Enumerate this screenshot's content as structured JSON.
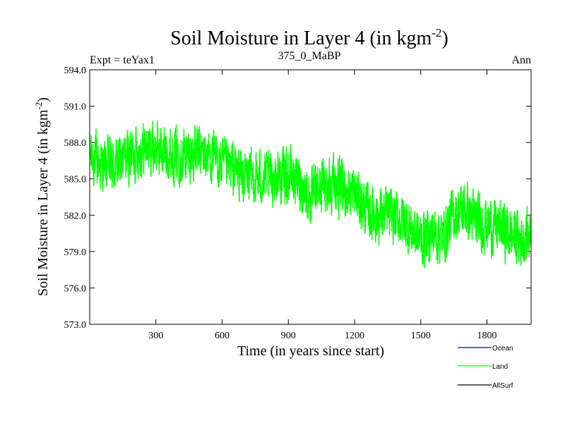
{
  "chart_data": {
    "type": "line",
    "title": "Soil Moisture in Layer 4 (in kgm",
    "title_sup": "-2",
    "title_close": ")",
    "subtitle_left": "Expt = teYax1",
    "subtitle_center": "375_0_MaBP",
    "subtitle_right": "Ann",
    "xlabel": "Time (in years since start)",
    "ylabel": "Soil Moisture in Layer 4 (in kgm",
    "ylabel_sup": "-2",
    "ylabel_close": ")",
    "xlim": [
      0,
      2000
    ],
    "ylim": [
      573.0,
      594.0
    ],
    "x_ticks": [
      300,
      600,
      900,
      1200,
      1500,
      1800
    ],
    "x_tick_labels": [
      "300",
      "600",
      "900",
      "1200",
      "1500",
      "1800"
    ],
    "y_ticks": [
      573.0,
      576.0,
      579.0,
      582.0,
      585.0,
      588.0,
      591.0,
      594.0
    ],
    "y_tick_labels": [
      "573.0",
      "576.0",
      "579.0",
      "582.0",
      "585.0",
      "588.0",
      "591.0",
      "594.0"
    ],
    "series": [
      {
        "name": "Ocean",
        "color": "#0000ff",
        "values": []
      },
      {
        "name": "Land",
        "color": "#00ff00",
        "anchors_x": [
          0,
          50,
          100,
          150,
          200,
          250,
          300,
          350,
          400,
          450,
          500,
          550,
          600,
          650,
          700,
          750,
          800,
          850,
          900,
          950,
          1000,
          1050,
          1100,
          1150,
          1200,
          1250,
          1300,
          1350,
          1400,
          1450,
          1500,
          1550,
          1600,
          1650,
          1700,
          1750,
          1800,
          1850,
          1900,
          1950,
          2000
        ],
        "anchors_y": [
          587.0,
          586.2,
          586.0,
          586.5,
          587.2,
          587.6,
          587.5,
          587.2,
          587.0,
          587.0,
          587.2,
          586.8,
          586.0,
          585.8,
          585.2,
          585.0,
          585.0,
          585.2,
          585.3,
          584.8,
          583.2,
          584.5,
          584.8,
          584.0,
          583.8,
          582.5,
          582.0,
          582.0,
          581.8,
          581.0,
          580.0,
          580.5,
          580.2,
          582.0,
          582.5,
          581.5,
          581.2,
          581.0,
          580.5,
          580.0,
          580.5
        ],
        "noise_amplitude": 2.2,
        "n_points": 2000
      },
      {
        "name": "AllSurf",
        "color": "#000000",
        "values": []
      }
    ],
    "legend_position": "bottom-right"
  }
}
